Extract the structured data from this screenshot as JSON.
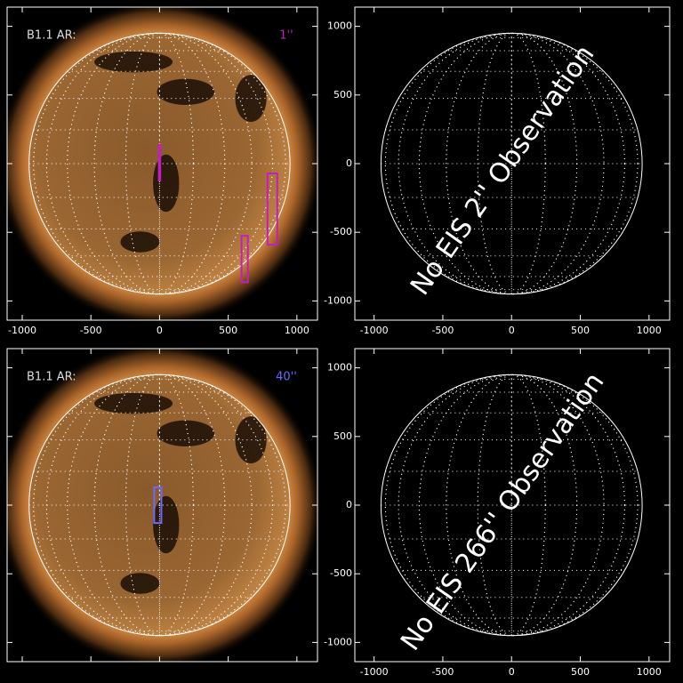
{
  "panels": [
    {
      "label": "B1.1 AR:",
      "size_label": "1''",
      "size_color": "#c020c0",
      "image": true,
      "xlim": [
        -1110,
        1150
      ],
      "ylim": [
        -1140,
        1140
      ],
      "disk_radius": 950,
      "xticks": [
        -1000,
        -500,
        0,
        500,
        1000
      ],
      "yticks": [
        -1000,
        -500,
        0,
        500,
        1000
      ],
      "show_x_labels": true,
      "show_y_labels": false,
      "rects": [
        {
          "x": [
            -5,
            5
          ],
          "y": [
            -123,
            136
          ]
        },
        {
          "x": [
            786,
            857
          ],
          "y": [
            -591,
            -71
          ]
        },
        {
          "x": [
            597,
            643
          ],
          "y": [
            -864,
            -526
          ]
        }
      ]
    },
    {
      "message": "No EIS 2'' Observation",
      "image": false,
      "xlim": [
        -1140,
        1150
      ],
      "ylim": [
        -1140,
        1140
      ],
      "disk_radius": 950,
      "xticks": [
        -1000,
        -500,
        0,
        500,
        1000
      ],
      "yticks": [
        -1000,
        -500,
        0,
        500,
        1000
      ],
      "show_x_labels": true,
      "show_y_labels": true,
      "rects": []
    },
    {
      "label": "B1.1 AR:",
      "size_label": "40''",
      "size_color": "#6a6aff",
      "image": true,
      "xlim": [
        -1110,
        1150
      ],
      "ylim": [
        -1140,
        1140
      ],
      "disk_radius": 950,
      "xticks": [
        -1000,
        -500,
        0,
        500,
        1000
      ],
      "yticks": [
        -1000,
        -500,
        0,
        500,
        1000
      ],
      "show_x_labels": false,
      "show_y_labels": false,
      "rects": [
        {
          "x": [
            -39,
            13
          ],
          "y": [
            -130,
            130
          ]
        }
      ]
    },
    {
      "message": "No EIS 266'' Observation",
      "image": false,
      "xlim": [
        -1140,
        1150
      ],
      "ylim": [
        -1140,
        1140
      ],
      "disk_radius": 950,
      "xticks": [
        -1000,
        -500,
        0,
        500,
        1000
      ],
      "yticks": [
        -1000,
        -500,
        0,
        500,
        1000
      ],
      "show_x_labels": true,
      "show_y_labels": true,
      "rects": []
    }
  ]
}
